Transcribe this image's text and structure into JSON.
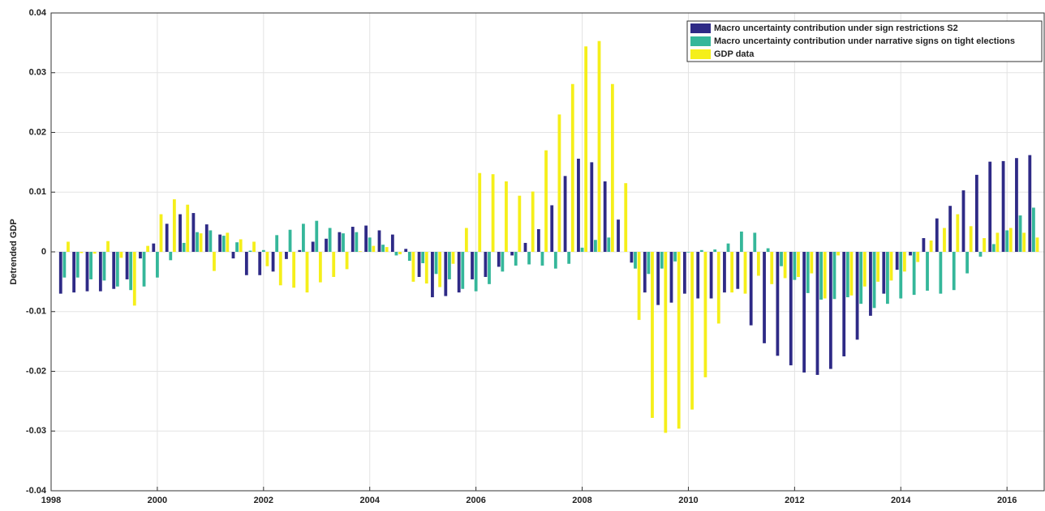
{
  "chart_data": {
    "type": "bar",
    "y_label": "Detrended GDP",
    "x": [
      1998.25,
      1998.5,
      1998.75,
      1999,
      1999.25,
      1999.5,
      1999.75,
      2000,
      2000.25,
      2000.5,
      2000.75,
      2001,
      2001.25,
      2001.5,
      2001.75,
      2002,
      2002.25,
      2002.5,
      2002.75,
      2003,
      2003.25,
      2003.5,
      2003.75,
      2004,
      2004.25,
      2004.5,
      2004.75,
      2005,
      2005.25,
      2005.5,
      2005.75,
      2006,
      2006.25,
      2006.5,
      2006.75,
      2007,
      2007.25,
      2007.5,
      2007.75,
      2008,
      2008.25,
      2008.5,
      2008.75,
      2009,
      2009.25,
      2009.5,
      2009.75,
      2010,
      2010.25,
      2010.5,
      2010.75,
      2011,
      2011.25,
      2011.5,
      2011.75,
      2012,
      2012.25,
      2012.5,
      2012.75,
      2013,
      2013.25,
      2013.5,
      2013.75,
      2014,
      2014.25,
      2014.5,
      2014.75,
      2015,
      2015.25,
      2015.5,
      2015.75,
      2016,
      2016.25,
      2016.5
    ],
    "series": [
      {
        "name": "Macro uncertainty contribution under sign restrictions S2",
        "color": "#2e2a86",
        "values": [
          -0.007,
          -0.0068,
          -0.0066,
          -0.0066,
          -0.0062,
          -0.0046,
          -0.0011,
          0.0014,
          0.0047,
          0.0063,
          0.0065,
          0.0046,
          0.0029,
          -0.0011,
          -0.0039,
          -0.0039,
          -0.0033,
          -0.0012,
          0.0003,
          0.0017,
          0.0022,
          0.0033,
          0.0042,
          0.0044,
          0.0036,
          0.0029,
          0.0005,
          -0.0042,
          -0.0076,
          -0.0074,
          -0.0068,
          -0.0046,
          -0.0042,
          -0.0025,
          -0.0006,
          0.0015,
          0.0038,
          0.0078,
          0.0127,
          0.0156,
          0.015,
          0.0118,
          0.0054,
          -0.0018,
          -0.0068,
          -0.0089,
          -0.0085,
          -0.007,
          -0.0078,
          -0.0078,
          -0.0068,
          -0.0062,
          -0.0123,
          -0.0153,
          -0.0174,
          -0.019,
          -0.0202,
          -0.0206,
          -0.0196,
          -0.0175,
          -0.0147,
          -0.0107,
          -0.007,
          -0.003,
          -0.0006,
          0.0023,
          0.0056,
          0.0077,
          0.0103,
          0.0129,
          0.0151,
          0.0152,
          0.0157,
          0.0162
        ]
      },
      {
        "name": "Macro uncertainty contribution under narrative signs on tight elections",
        "color": "#35b79a",
        "values": [
          -0.0043,
          -0.0043,
          -0.0046,
          -0.0048,
          -0.0058,
          -0.0064,
          -0.0058,
          -0.0043,
          -0.0014,
          0.0015,
          0.0033,
          0.0036,
          0.0027,
          0.0016,
          0.0002,
          0.0003,
          0.0028,
          0.0037,
          0.0047,
          0.0052,
          0.004,
          0.0031,
          0.0033,
          0.0024,
          0.0012,
          -0.0006,
          -0.0015,
          -0.0019,
          -0.0037,
          -0.0046,
          -0.0062,
          -0.0066,
          -0.0054,
          -0.0033,
          -0.0023,
          -0.0021,
          -0.0023,
          -0.0028,
          -0.002,
          0.0007,
          0.002,
          0.0024,
          0.0,
          -0.0028,
          -0.0037,
          -0.0028,
          -0.0016,
          -0.0001,
          0.0003,
          0.0004,
          0.0014,
          0.0034,
          0.0032,
          0.0006,
          -0.0024,
          -0.0047,
          -0.0069,
          -0.008,
          -0.0079,
          -0.0076,
          -0.0087,
          -0.0094,
          -0.0087,
          -0.0078,
          -0.0072,
          -0.0065,
          -0.007,
          -0.0064,
          -0.0036,
          -0.0008,
          0.0013,
          0.0036,
          0.0061,
          0.0074
        ]
      },
      {
        "name": "GDP data",
        "color": "#f5ef1a",
        "values": [
          0.0017,
          -0.0002,
          -0.0003,
          0.0018,
          -0.001,
          -0.009,
          0.001,
          0.0063,
          0.0088,
          0.0079,
          0.0031,
          -0.0032,
          0.0032,
          0.0021,
          0.0017,
          -0.0024,
          -0.0056,
          -0.006,
          -0.0068,
          -0.0051,
          -0.0042,
          -0.0029,
          0.0001,
          0.001,
          0.0008,
          -0.0004,
          -0.005,
          -0.0053,
          -0.0059,
          -0.002,
          0.004,
          0.0132,
          0.013,
          0.0118,
          0.0094,
          0.0101,
          0.017,
          0.023,
          0.0281,
          0.0344,
          0.0353,
          0.0281,
          0.0115,
          -0.0114,
          -0.0278,
          -0.0303,
          -0.0296,
          -0.0264,
          -0.021,
          -0.012,
          -0.0068,
          -0.007,
          -0.004,
          -0.0054,
          -0.0044,
          -0.0042,
          -0.0036,
          -0.0078,
          -0.0006,
          -0.0073,
          -0.0058,
          -0.005,
          -0.0048,
          -0.0033,
          -0.0017,
          0.0019,
          0.004,
          0.0063,
          0.0043,
          0.0023,
          0.0032,
          0.004,
          0.0032,
          0.0024
        ]
      }
    ],
    "xlim": [
      1998,
      2016.7
    ],
    "xticks": [
      1998,
      2000,
      2002,
      2004,
      2006,
      2008,
      2010,
      2012,
      2014,
      2016
    ],
    "ylim": [
      -0.04,
      0.04
    ],
    "yticks": [
      -0.04,
      -0.03,
      -0.02,
      -0.01,
      0,
      0.01,
      0.02,
      0.03,
      0.04
    ],
    "grid": true,
    "legend": "upper right"
  }
}
